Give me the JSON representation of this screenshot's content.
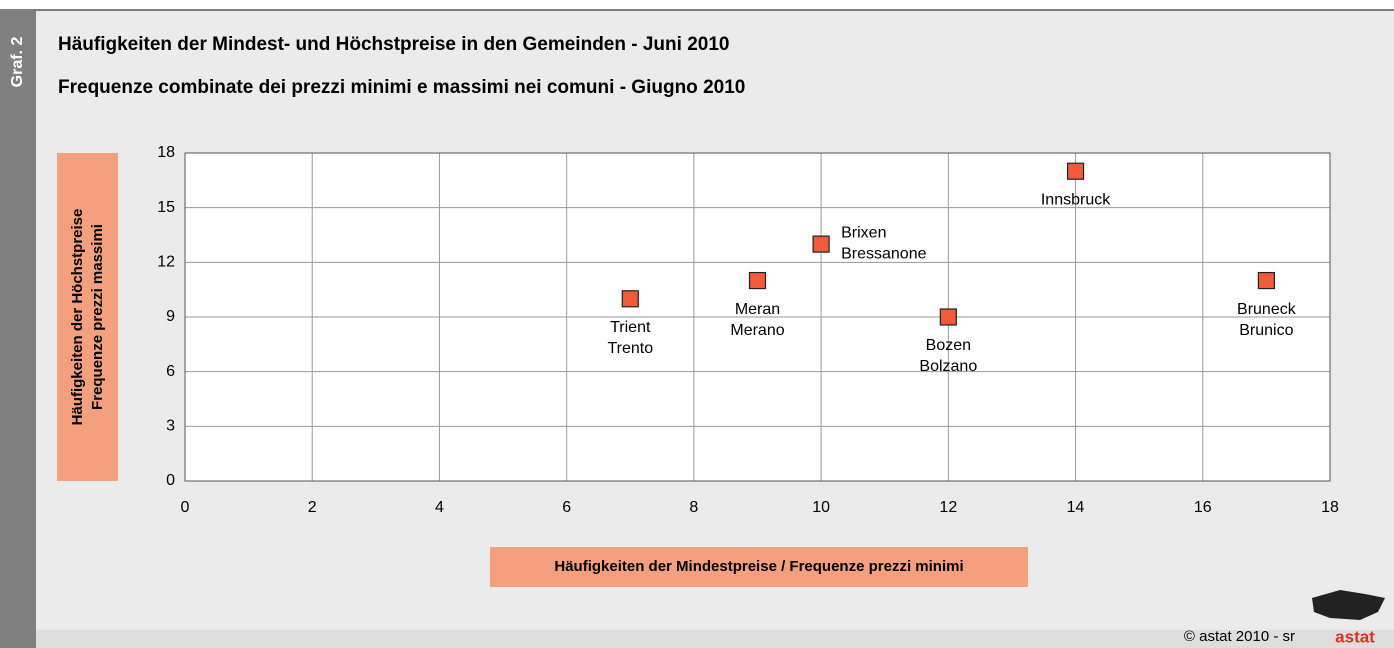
{
  "chart_data": {
    "type": "scatter",
    "badge": "Graf. 2",
    "title": "Häufigkeiten der Mindest- und Höchstpreise in den Gemeinden - Juni 2010",
    "subtitle": "Frequenze combinate dei prezzi minimi e massimi nei comuni - Giugno 2010",
    "xlabel": "Häufigkeiten der Mindestpreise / Frequenze prezzi minimi",
    "ylabel": [
      "Häufigkeiten der Höchstpreise",
      "Frequenze prezzi massimi"
    ],
    "series": [
      {
        "color": "#f15a3a",
        "x": [
          7,
          9,
          10,
          12,
          14,
          17
        ],
        "values": [
          10,
          11,
          13,
          9,
          17,
          11
        ],
        "point_labels": [
          [
            "Trient",
            "Trento"
          ],
          [
            "Meran",
            "Merano"
          ],
          [
            "Brixen",
            "Bressanone"
          ],
          [
            "Bozen",
            "Bolzano"
          ],
          [
            "Innsbruck"
          ],
          [
            "Bruneck",
            "Brunico"
          ]
        ]
      }
    ],
    "xlim": [
      0,
      18
    ],
    "xticks": [
      0,
      2,
      4,
      6,
      8,
      10,
      12,
      14,
      16,
      18
    ],
    "ylim": [
      0,
      18
    ],
    "yticks": [
      0,
      3,
      6,
      9,
      12,
      15,
      18
    ],
    "grid": true,
    "footer": "© astat 2010 - sr",
    "logo": "astat"
  }
}
